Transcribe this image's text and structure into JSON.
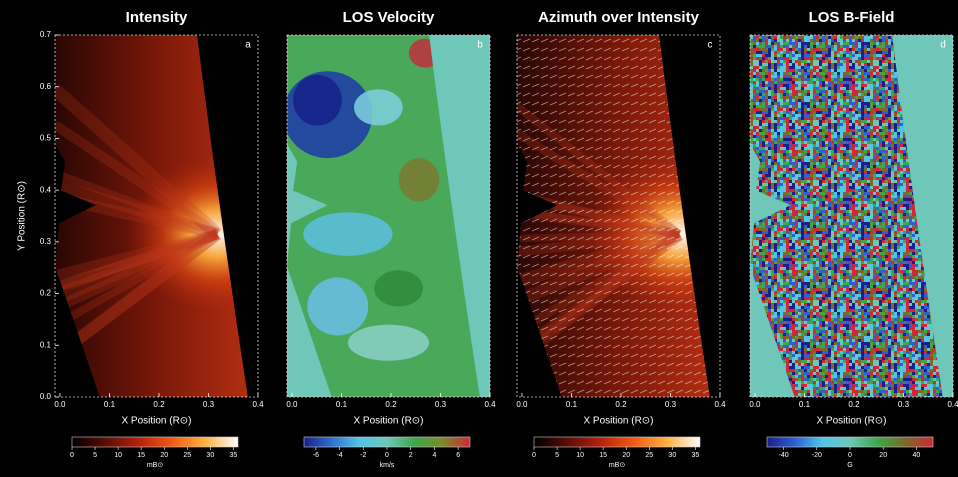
{
  "chart_data": [
    {
      "type": "image",
      "title": "Intensity",
      "panel_label": "a",
      "xlabel": "X Position (R⊙)",
      "ylabel": "Y Position (R⊙)",
      "xlim": [
        -0.01,
        0.4
      ],
      "xticks": [
        {
          "value": 0,
          "label": "0.0"
        },
        0.1,
        0.2,
        0.3,
        0.4
      ],
      "ylim": [
        0,
        0.7
      ],
      "yticks": [
        {
          "value": 0,
          "label": "0.0"
        },
        0.1,
        0.2,
        0.3,
        0.4,
        0.5,
        0.6,
        0.7
      ],
      "colorbar": {
        "lim": [
          0,
          36
        ],
        "ticks": [
          0,
          5,
          10,
          15,
          20,
          25,
          30,
          35
        ],
        "label": "mB⊙",
        "colors": [
          "#000000",
          "#5a0d06",
          "#b2220e",
          "#f05a14",
          "#ffb040",
          "#ffffff"
        ]
      }
    },
    {
      "type": "image",
      "title": "LOS Velocity",
      "panel_label": "b",
      "xlabel": "X Position (R⊙)",
      "xlim": [
        -0.01,
        0.4
      ],
      "xticks": [
        {
          "value": 0,
          "label": "0.0"
        },
        0.1,
        0.2,
        0.3,
        0.4
      ],
      "ylim": [
        0,
        0.7
      ],
      "colorbar": {
        "lim": [
          -7,
          7
        ],
        "ticks": [
          -6,
          -4,
          -2,
          0,
          2,
          4,
          6
        ],
        "label": "km/s",
        "colors": [
          "#1a1f8a",
          "#2f6fd0",
          "#4fc6e6",
          "#6ec7b9",
          "#3ea74a",
          "#7b8a2a",
          "#d0283a"
        ]
      }
    },
    {
      "type": "image",
      "title": "Azimuth over Intensity",
      "panel_label": "c",
      "xlabel": "X Position (R⊙)",
      "xlim": [
        -0.01,
        0.4
      ],
      "xticks": [
        {
          "value": 0,
          "label": "0.0"
        },
        0.1,
        0.2,
        0.3,
        0.4
      ],
      "ylim": [
        0,
        0.7
      ],
      "colorbar": {
        "lim": [
          0,
          36
        ],
        "ticks": [
          0,
          5,
          10,
          15,
          20,
          25,
          30,
          35
        ],
        "label": "mB⊙",
        "colors": [
          "#000000",
          "#5a0d06",
          "#b2220e",
          "#f05a14",
          "#ffb040",
          "#ffffff"
        ]
      }
    },
    {
      "type": "image",
      "title": "LOS B-Field",
      "panel_label": "d",
      "xlabel": "X Position (R⊙)",
      "xlim": [
        -0.01,
        0.4
      ],
      "xticks": [
        {
          "value": 0,
          "label": "0.0"
        },
        0.1,
        0.2,
        0.3,
        0.4
      ],
      "ylim": [
        0,
        0.7
      ],
      "colorbar": {
        "lim": [
          -50,
          50
        ],
        "ticks": [
          -40,
          -20,
          0,
          20,
          40
        ],
        "label": "G",
        "colors": [
          "#1a1f8a",
          "#2f5fd0",
          "#4fc6e6",
          "#6ec7b9",
          "#3ea74a",
          "#7b6a2a",
          "#d0283a"
        ]
      }
    }
  ]
}
